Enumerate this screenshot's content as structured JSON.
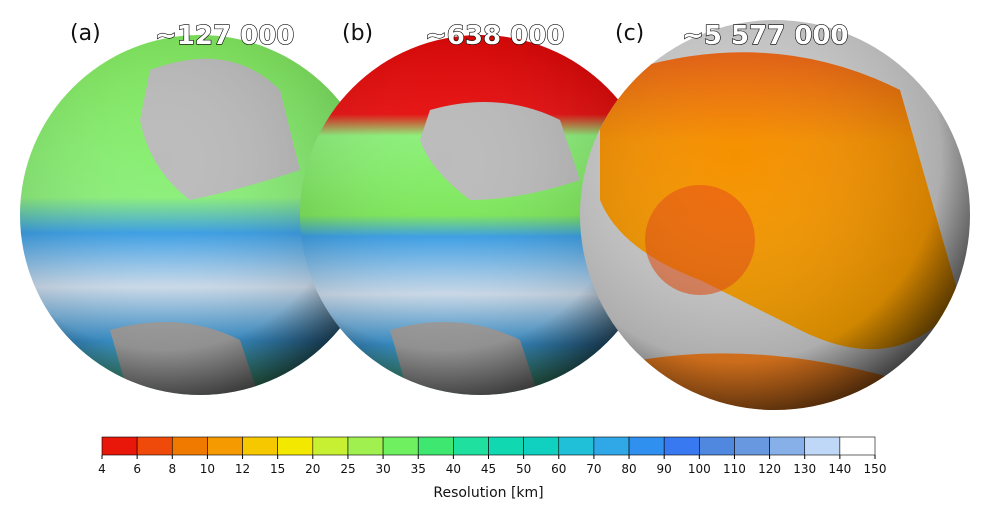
{
  "panels": [
    {
      "label": "(a)",
      "count": "~127 000"
    },
    {
      "label": "(b)",
      "count": "~638 000"
    },
    {
      "label": "(c)",
      "count": "~5 577 000"
    }
  ],
  "colorbar": {
    "label": "Resolution [km]",
    "ticks": [
      4,
      6,
      8,
      10,
      12,
      15,
      20,
      25,
      30,
      35,
      40,
      45,
      50,
      60,
      70,
      80,
      90,
      100,
      110,
      120,
      130,
      140,
      150
    ],
    "colors": [
      "#e8170a",
      "#f04a0a",
      "#f07a00",
      "#f59a00",
      "#f5c800",
      "#f2e800",
      "#c8f032",
      "#a0f050",
      "#6ef060",
      "#3ee870",
      "#20e0a0",
      "#10d8b0",
      "#10d0c0",
      "#20c0d8",
      "#30a8e8",
      "#3090f0",
      "#3878f0",
      "#5088e0",
      "#6898e0",
      "#88b0e8",
      "#c0d8f8",
      "#ffffff"
    ]
  }
}
